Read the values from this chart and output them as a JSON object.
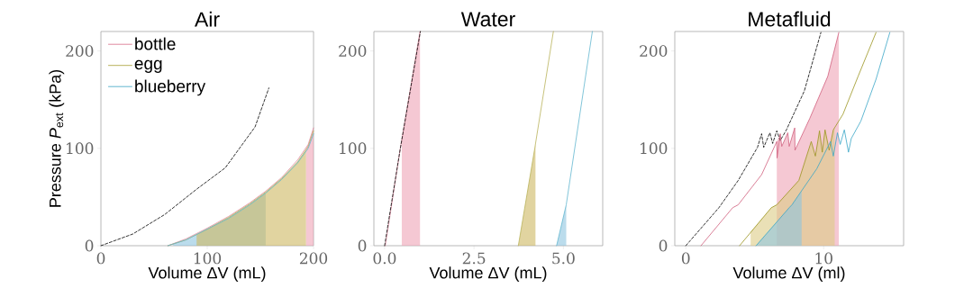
{
  "chart_data": [
    {
      "type": "line",
      "title": "Air",
      "xlabel": "Volume ΔV (mL)",
      "ylabel": "Pressure *P*$_{ext}$ (kPa)",
      "xlim": [
        0,
        200
      ],
      "ylim": [
        0,
        220
      ],
      "xticks": [
        0,
        100,
        200
      ],
      "yticks": [
        0,
        100,
        200
      ],
      "legend": "top left",
      "series": [
        {
          "type": "area",
          "color": "#8ec5e0",
          "x": [
            68,
            80,
            100,
            120,
            140,
            155
          ],
          "values": [
            2,
            6,
            17,
            28,
            42,
            54
          ]
        },
        {
          "type": "area",
          "color": "#cdb860",
          "x": [
            90,
            100,
            120,
            140,
            155,
            170,
            185,
            193
          ],
          "values": [
            11,
            17,
            29,
            43,
            55,
            69,
            86,
            99
          ]
        },
        {
          "type": "area",
          "color": "#eea4b6",
          "x": [
            193,
            195,
            200
          ],
          "values": [
            100,
            104,
            121
          ]
        },
        {
          "type": "line",
          "color": "#000000",
          "line_style": "dashed",
          "x": [
            0,
            30,
            60,
            90,
            117,
            145,
            158
          ],
          "values": [
            0,
            12,
            32,
            58,
            80,
            122,
            162
          ]
        },
        {
          "name": "bottle",
          "color": "#e08aa0",
          "x": [
            63,
            80,
            100,
            120,
            140,
            155,
            170,
            185,
            195,
            200
          ],
          "values": [
            0,
            7,
            18,
            30,
            44,
            56,
            70,
            88,
            104,
            121
          ]
        },
        {
          "name": "egg",
          "color": "#b9b25a",
          "x": [
            63,
            80,
            100,
            120,
            140,
            155,
            170,
            185,
            195,
            200
          ],
          "values": [
            0,
            6,
            17,
            29,
            43,
            55,
            69,
            86,
            102,
            118
          ]
        },
        {
          "name": "blueberry",
          "color": "#62b6cf",
          "x": [
            63,
            80,
            100,
            120,
            140,
            155,
            170,
            185,
            195,
            200
          ],
          "values": [
            0,
            6,
            17,
            28,
            42,
            54,
            68,
            85,
            100,
            115
          ]
        }
      ]
    },
    {
      "type": "line",
      "title": "Water",
      "xlabel": "Volume ΔV (mL)",
      "xlim": [
        -0.3,
        6.1
      ],
      "ylim": [
        0,
        220
      ],
      "xticks": [
        {
          "value": 0,
          "label": "0.0"
        },
        {
          "value": 2.5,
          "label": "2.5"
        },
        {
          "value": 5,
          "label": "5.0"
        }
      ],
      "yticks": [
        0,
        100,
        200
      ],
      "series": [
        {
          "type": "area",
          "color": "#eea4b6",
          "x": [
            0.48,
            0.99
          ],
          "values": [
            108,
            220
          ]
        },
        {
          "type": "area",
          "color": "#cdb860",
          "x": [
            3.74,
            4.2,
            4.22
          ],
          "values": [
            0,
            100,
            104
          ]
        },
        {
          "type": "area",
          "color": "#8ec5e0",
          "x": [
            4.81,
            5.08
          ],
          "values": [
            0,
            42
          ]
        },
        {
          "color": "#e08aa0",
          "x": [
            0.02,
            0.44,
            0.99
          ],
          "values": [
            0,
            100,
            220
          ]
        },
        {
          "color": "#b9b25a",
          "x": [
            3.74,
            4.2,
            4.72
          ],
          "values": [
            0,
            100,
            220
          ]
        },
        {
          "color": "#62b6cf",
          "x": [
            4.81,
            5.08,
            5.81
          ],
          "values": [
            0,
            42,
            220
          ]
        },
        {
          "type": "line",
          "color": "#000000",
          "line_style": "dashed",
          "x": [
            0,
            0.44,
            1.0
          ],
          "values": [
            0,
            100,
            220
          ]
        }
      ]
    },
    {
      "type": "line",
      "title": "Metafluid",
      "xlabel": "Volume ΔV (ml)",
      "xlim": [
        -0.8,
        15.8
      ],
      "ylim": [
        0,
        220
      ],
      "xticks": [
        0,
        10
      ],
      "yticks": [
        0,
        100,
        200
      ],
      "series": [
        {
          "type": "area",
          "color": "#eea4b6",
          "x": [
            6.6,
            6.85,
            6.96,
            7.4,
            7.5,
            7.9,
            7.92,
            9.0,
            10.3,
            11.1
          ],
          "values": [
            107,
            115,
            102,
            116,
            102,
            121,
            98,
            131,
            174,
            219
          ]
        },
        {
          "type": "area",
          "color": "#dccb86",
          "x": [
            4.7,
            6.2,
            6.6,
            8.2,
            9.1,
            9.4,
            9.7,
            9.9,
            10.1,
            10.4,
            10.7,
            10.8
          ],
          "values": [
            14,
            39,
            42,
            67,
            107,
            92,
            118,
            96,
            119,
            98,
            119,
            121
          ]
        },
        {
          "type": "area",
          "color": "#8ec5e0",
          "x": [
            5.1,
            7.5,
            7.7,
            8.4
          ],
          "values": [
            0,
            39,
            42,
            56
          ]
        },
        {
          "type": "line",
          "color": "#000000",
          "line_style": "dashed",
          "x": [
            0,
            2.4,
            3.8,
            5.2,
            5.5,
            5.65,
            6.1,
            6.3,
            6.6,
            6.85,
            7.3,
            8.6,
            9.8
          ],
          "values": [
            0,
            39,
            67,
            101,
            115,
            101,
            116,
            105,
            118,
            108,
            119,
            159,
            219
          ]
        },
        {
          "color": "#d0607e",
          "x": [
            1.1,
            3.4,
            3.8,
            5.5,
            6.6,
            6.62,
            6.85,
            6.96,
            7.4,
            7.5,
            7.9,
            7.92,
            9.0,
            10.3,
            11.1
          ],
          "values": [
            0,
            39,
            42,
            73,
            107,
            90,
            115,
            102,
            116,
            102,
            121,
            98,
            131,
            174,
            219
          ]
        },
        {
          "color": "#9a9420",
          "x": [
            3.9,
            6.2,
            6.6,
            8.2,
            9.1,
            9.4,
            9.7,
            9.9,
            10.1,
            10.4,
            10.7,
            11.4,
            12.5,
            13.8
          ],
          "values": [
            0,
            39,
            42,
            67,
            107,
            92,
            118,
            96,
            119,
            98,
            119,
            135,
            174,
            219
          ]
        },
        {
          "color": "#3aa6c6",
          "x": [
            5.1,
            7.5,
            7.7,
            9.5,
            10.5,
            10.7,
            11.0,
            11.2,
            11.5,
            11.8,
            12.0,
            12.7,
            13.8,
            14.8
          ],
          "values": [
            0,
            39,
            42,
            79,
            107,
            92,
            116,
            104,
            119,
            96,
            110,
            128,
            171,
            219
          ]
        }
      ]
    }
  ]
}
